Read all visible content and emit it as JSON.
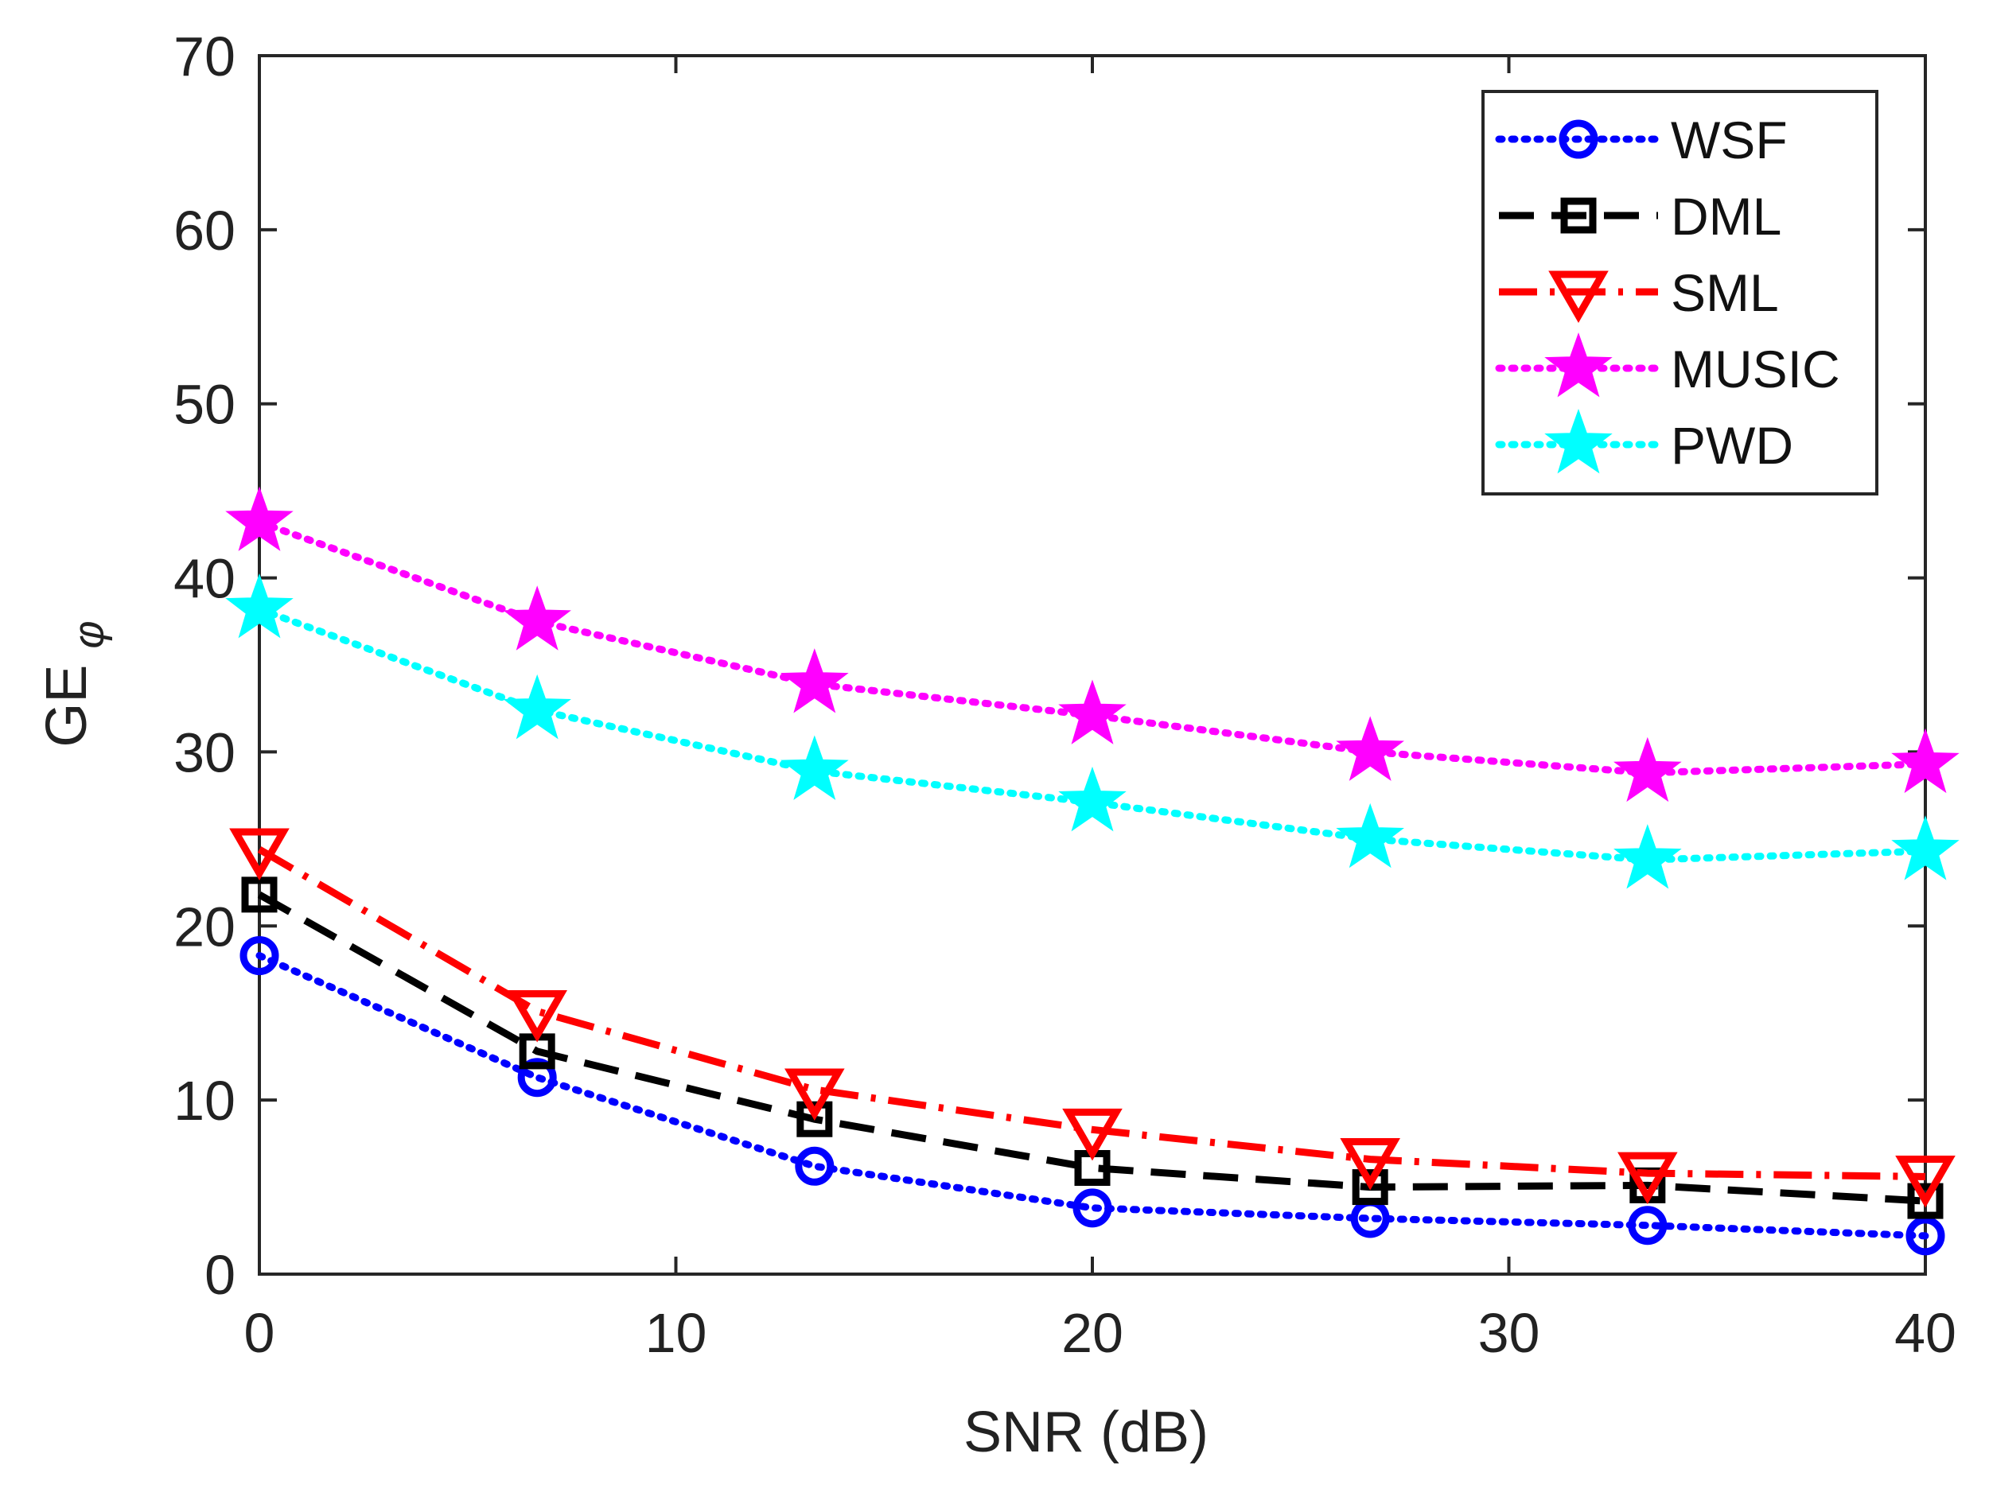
{
  "chart_data": {
    "type": "line",
    "xlabel": "SNR (dB)",
    "ylabel": "GE",
    "ylabel_subscript": "φ",
    "xlim": [
      0,
      40
    ],
    "ylim": [
      0,
      70
    ],
    "xticks": [
      0,
      10,
      20,
      30,
      40
    ],
    "yticks": [
      0,
      10,
      20,
      30,
      40,
      50,
      60,
      70
    ],
    "grid": false,
    "legend_position": "top-right",
    "x": [
      0,
      6.67,
      13.33,
      20,
      26.67,
      33.33,
      40
    ],
    "series": [
      {
        "name": "WSF",
        "color": "#0000ff",
        "line_style": "dotted",
        "marker": "circle",
        "values": [
          18.3,
          11.3,
          6.2,
          3.8,
          3.2,
          2.8,
          2.2
        ]
      },
      {
        "name": "DML",
        "color": "#000000",
        "line_style": "dashed",
        "marker": "square",
        "values": [
          21.8,
          12.8,
          8.9,
          6.1,
          5.0,
          5.1,
          4.2
        ]
      },
      {
        "name": "SML",
        "color": "#ff0000",
        "line_style": "dash-dot",
        "marker": "triangle-down",
        "values": [
          24.4,
          15.1,
          10.6,
          8.3,
          6.6,
          5.8,
          5.6
        ]
      },
      {
        "name": "MUSIC",
        "color": "#ff00ff",
        "line_style": "dotted",
        "marker": "star",
        "values": [
          43.2,
          37.5,
          33.9,
          32.1,
          30.0,
          28.8,
          29.3
        ]
      },
      {
        "name": "PWD",
        "color": "#00ffff",
        "line_style": "dotted",
        "marker": "star",
        "values": [
          38.2,
          32.4,
          28.9,
          27.1,
          25.0,
          23.8,
          24.3
        ]
      }
    ]
  }
}
